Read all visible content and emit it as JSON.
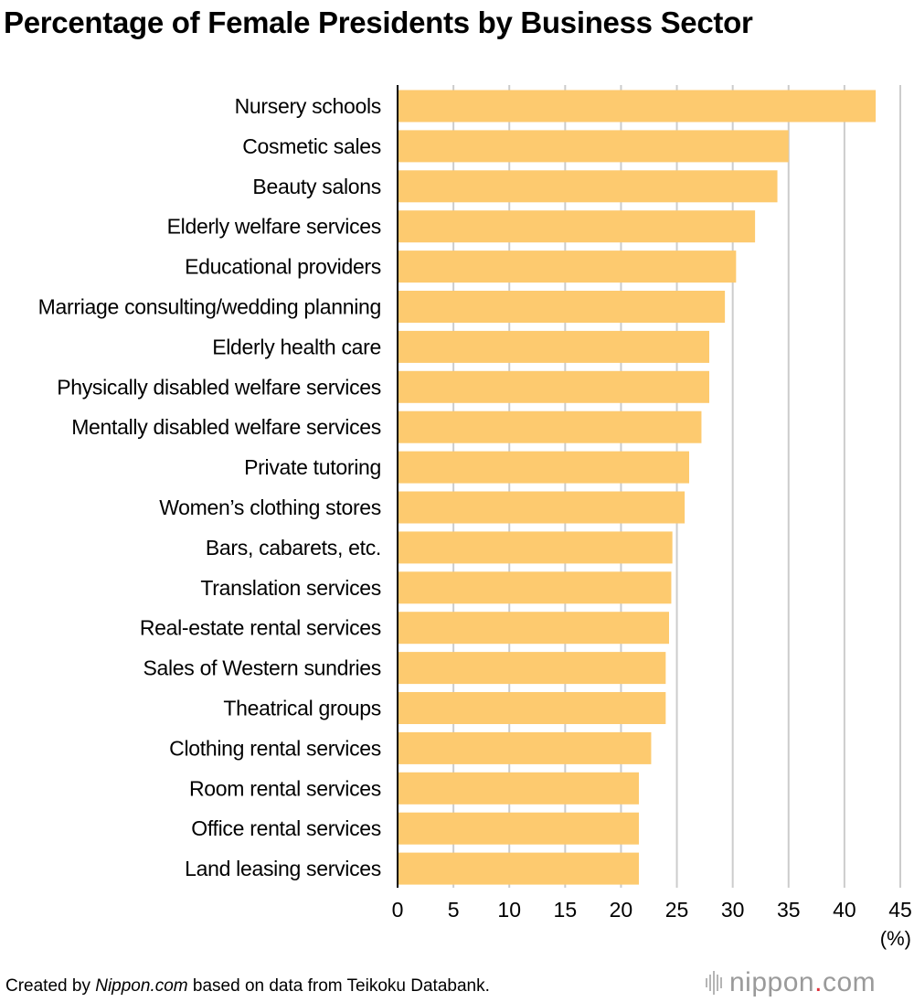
{
  "title": "Percentage of Female Presidents by Business Sector",
  "chart_data": {
    "type": "bar",
    "orientation": "horizontal",
    "title": "Percentage of Female Presidents by Business Sector",
    "categories": [
      "Nursery schools",
      "Cosmetic sales",
      "Beauty salons",
      "Elderly welfare services",
      "Educational providers",
      "Marriage consulting/wedding planning",
      "Elderly health care",
      "Physically disabled welfare services",
      "Mentally disabled welfare services",
      "Private tutoring",
      "Women’s clothing stores",
      "Bars, cabarets, etc.",
      "Translation services",
      "Real-estate rental services",
      "Sales of Western sundries",
      "Theatrical groups",
      "Clothing rental services",
      "Room rental services",
      "Office rental services",
      "Land leasing services"
    ],
    "values": [
      42.8,
      35.0,
      34.0,
      32.0,
      30.3,
      29.3,
      27.9,
      27.9,
      27.2,
      26.1,
      25.7,
      24.6,
      24.5,
      24.3,
      24.0,
      24.0,
      22.7,
      21.6,
      21.6,
      21.6
    ],
    "xlim": [
      0,
      45
    ],
    "xticks": [
      "0",
      "5",
      "10",
      "15",
      "20",
      "25",
      "30",
      "35",
      "40",
      "45"
    ],
    "xlabel": "(%)",
    "ylabel": "",
    "grid": true,
    "colors": {
      "bar": "#fdca6f",
      "grid": "#cccccc",
      "axis": "#000000"
    }
  },
  "footer": {
    "prefix": "Created by ",
    "source_name": "Nippon.com",
    "suffix": " based on data from Teikoku Databank."
  },
  "logo": {
    "name": "nippon",
    "dot": ".",
    "tld": "com"
  }
}
